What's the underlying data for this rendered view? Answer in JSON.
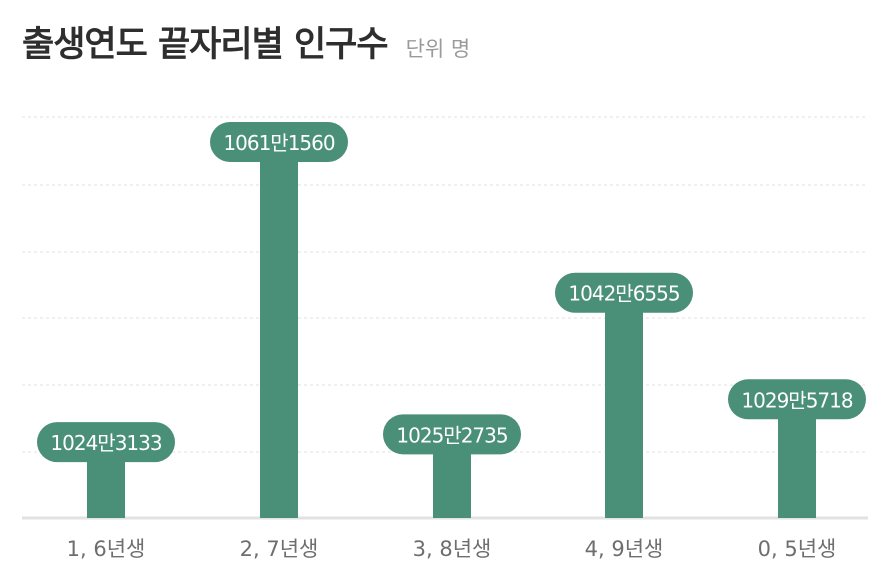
{
  "title": "출생연도 끝자리별 인구수",
  "unit": "단위 명",
  "colors": {
    "bar": "#4a8f77",
    "label_bg": "#4a8f77",
    "label_text": "#ffffff",
    "axis": "#e2e2e2",
    "grid": "#e2e2e2",
    "tick_text": "#6e6e6e"
  },
  "chart_data": {
    "type": "bar",
    "title": "출생연도 끝자리별 인구수",
    "unit": "단위 명",
    "categories": [
      "1, 6년생",
      "2, 7년생",
      "3, 8년생",
      "4, 9년생",
      "0, 5년생"
    ],
    "values": [
      10243133,
      10611560,
      10252735,
      10426555,
      10295718
    ],
    "data_labels": [
      "1024만3133",
      "1061만1560",
      "1025만2735",
      "1042만6555",
      "1029만5718"
    ],
    "grid": true,
    "legend": "none"
  }
}
